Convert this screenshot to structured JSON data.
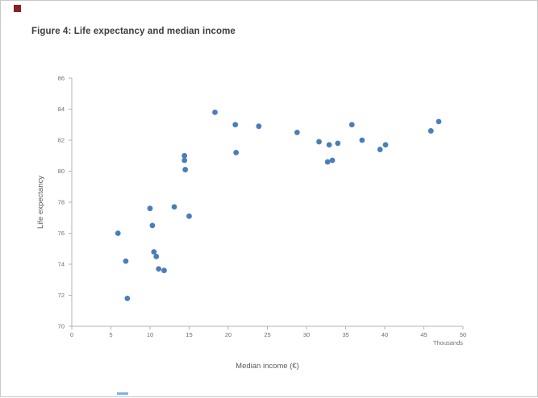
{
  "page": {
    "figure_title": "Figure 4: Life expectancy and median income"
  },
  "chart_data": {
    "type": "scatter",
    "title": "Figure 4: Life expectancy and median income",
    "xlabel": "Median income (€)",
    "ylabel": "Life expectancy",
    "x_unit_note": "Thousands",
    "xlim": [
      0,
      50
    ],
    "ylim": [
      70,
      86
    ],
    "x_ticks": [
      0,
      5,
      10,
      15,
      20,
      25,
      30,
      35,
      40,
      45,
      50
    ],
    "y_ticks": [
      70,
      72,
      74,
      76,
      78,
      80,
      82,
      84,
      86
    ],
    "grid": false,
    "legend": "none",
    "point_color": "#4a7ebb",
    "points": [
      [
        5.9,
        76.0
      ],
      [
        6.9,
        74.2
      ],
      [
        7.1,
        71.8
      ],
      [
        10.0,
        77.6
      ],
      [
        10.3,
        76.5
      ],
      [
        10.5,
        74.8
      ],
      [
        10.8,
        74.5
      ],
      [
        11.1,
        73.7
      ],
      [
        11.8,
        73.6
      ],
      [
        13.1,
        77.7
      ],
      [
        14.4,
        81.0
      ],
      [
        14.4,
        80.7
      ],
      [
        14.5,
        80.1
      ],
      [
        15.0,
        77.1
      ],
      [
        18.3,
        83.8
      ],
      [
        20.9,
        83.0
      ],
      [
        21.0,
        81.2
      ],
      [
        23.9,
        82.9
      ],
      [
        28.8,
        82.5
      ],
      [
        31.6,
        81.9
      ],
      [
        32.7,
        80.6
      ],
      [
        32.9,
        81.7
      ],
      [
        33.3,
        80.7
      ],
      [
        34.0,
        81.8
      ],
      [
        35.8,
        83.0
      ],
      [
        37.1,
        82.0
      ],
      [
        39.4,
        81.4
      ],
      [
        40.1,
        81.7
      ],
      [
        45.9,
        82.6
      ],
      [
        46.9,
        83.2
      ]
    ]
  }
}
